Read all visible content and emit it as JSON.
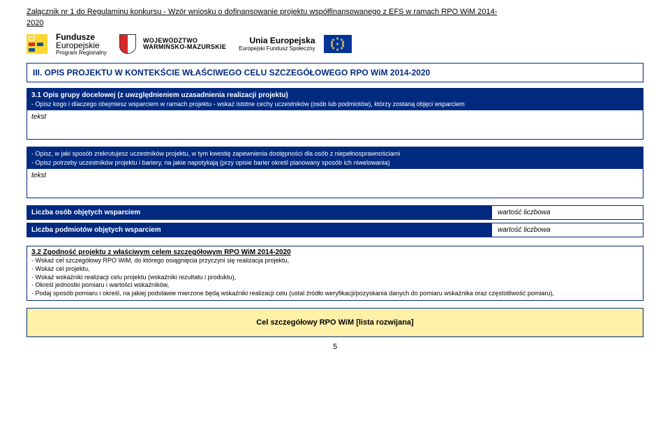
{
  "header": {
    "attachment_line1": "Załącznik nr 1 do Regulaminu konkursu - Wzór wniosku o dofinansowanie projektu współfinansowanego z EFS w ramach RPO WiM 2014-",
    "attachment_line2": "2020"
  },
  "logos": {
    "fe_line1": "Fundusze",
    "fe_line2": "Europejskie",
    "fe_line3": "Program Regionalny",
    "wojew_line1": "WOJEWÓDZTWO",
    "wojew_line2": "WARMIŃSKO-MAZURSKIE",
    "eu_line1": "Unia Europejska",
    "eu_line2": "Europejski Fundusz Społeczny"
  },
  "section3_title": "III. OPIS PROJEKTU W KONTEKŚCIE WŁAŚCIWEGO CELU SZCZEGÓŁOWEGO RPO WiM 2014-2020",
  "box31": {
    "title": "3.1 Opis grupy docelowej (z uwzględnieniem uzasadnienia realizacji projektu)",
    "sub": "- Opisz kogo i dlaczego obejmiesz wsparciem w ramach projektu - wskaż istotne cechy uczestników (osób lub podmiotów), którzy zostaną objęci wsparciem",
    "body": "tekst"
  },
  "box31b": {
    "sub1": "- Opisz, w jaki sposób zrekrutujesz uczestników projektu, w tym kwestię zapewnienia dostępności dla osób z niepełnosprawnościami",
    "sub2": "- Opisz potrzeby uczestników projektu i bariery, na jakie napotykają (przy opisie barier określ planowany sposób ich niwelowania)",
    "body": "tekst"
  },
  "counts": {
    "row1_label": "Liczba osób objętych wsparciem",
    "row1_value": "wartość liczbowa",
    "row2_label": "Liczba podmiotów objętych wsparciem",
    "row2_value": "wartość liczbowa"
  },
  "box32": {
    "title": "3.2 Zgodność projektu z właściwym celem szczegółowym RPO WiM 2014-2020",
    "l1": "- Wskaż cel szczegółowy RPO WiM, do którego osiągnięcia przyczyni się realizacja projektu,",
    "l2": "- Wskaż cel projektu,",
    "l3": "- Wskaż wskaźniki realizacji celu projektu (wskaźniki rezultatu i produktu),",
    "l4": "- Określ jednostki pomiaru i wartości wskaźników,",
    "l5": "- Podaj sposób pomiaru i określ, na jakiej podstawie mierzone będą wskaźniki realizacji celu (ustal źródło weryfikacji/pozyskania danych do pomiaru wskaźnika oraz częstotliwość pomiaru),"
  },
  "yellow_box_text": "Cel szczegółowy RPO WiM  [lista rozwijana]",
  "page_number": "5",
  "colors": {
    "navy": "#002a80",
    "yellow": "#fff1a8",
    "eu_blue": "#003399",
    "eu_gold": "#ffd52e",
    "red": "#d62828"
  }
}
